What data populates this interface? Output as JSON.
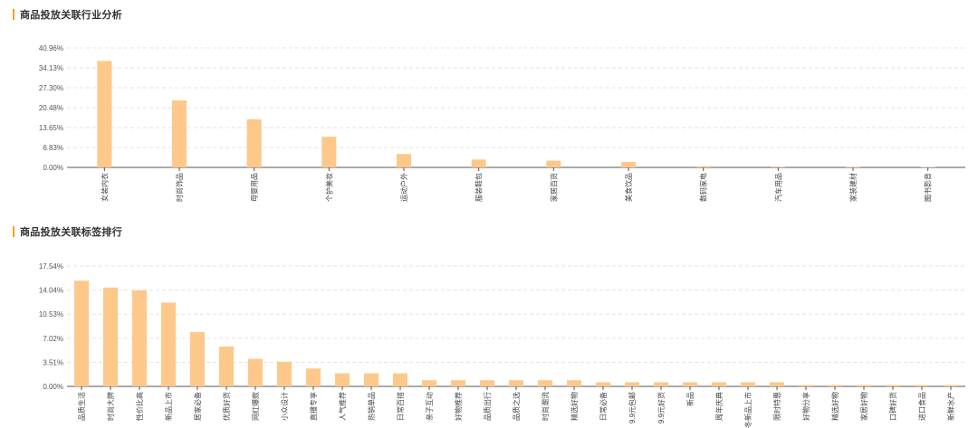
{
  "sections": [
    {
      "title": "商品投放关联行业分析"
    },
    {
      "title": "商品投放关联标签排行"
    }
  ],
  "colors": {
    "bar": "#fdc88a",
    "accent": "#f5a020",
    "grid": "#e3e3e3",
    "axis": "#555555"
  },
  "chart_data": [
    {
      "type": "bar",
      "title": "商品投放关联行业分析",
      "grid": true,
      "ylim": [
        0,
        40.96
      ],
      "yticks": [
        "0.00%",
        "6.83%",
        "13.65%",
        "20.48%",
        "27.30%",
        "34.13%",
        "40.96%"
      ],
      "categories": [
        "女装内衣",
        "时尚饰品",
        "母婴用品",
        "个护美妆",
        "运动户外",
        "服装鞋包",
        "家居百货",
        "美食饮品",
        "数码家电",
        "汽车用品",
        "家装建材",
        "图书影音"
      ],
      "values": [
        36.5,
        23.0,
        16.5,
        10.5,
        4.6,
        2.7,
        2.3,
        1.9,
        0.4,
        0.3,
        0.2,
        0.2
      ]
    },
    {
      "type": "bar",
      "title": "商品投放关联标签排行",
      "grid": true,
      "ylim": [
        0,
        17.54
      ],
      "yticks": [
        "0.00%",
        "3.51%",
        "7.02%",
        "10.53%",
        "14.04%",
        "17.54%"
      ],
      "categories": [
        "品质生活",
        "时尚大牌",
        "性价比高",
        "新品上市",
        "居家必备",
        "优质好货",
        "网红爆款",
        "小众设计",
        "直播专享",
        "人气推荐",
        "热销单品",
        "日常百搭",
        "亲子互动",
        "好物推荐",
        "品质出行",
        "品质之选",
        "时尚潮流",
        "精选好物",
        "日常必备",
        "9.9元包邮",
        "9.9元好货",
        "新品",
        "周年庆典",
        "秋冬新品上市",
        "限时特惠",
        "好物分享",
        "精选好物",
        "家居好物",
        "口碑好货",
        "进口食品",
        "新鲜水产"
      ],
      "values": [
        15.4,
        14.4,
        14.0,
        12.2,
        7.9,
        5.8,
        4.0,
        3.6,
        2.6,
        1.9,
        1.9,
        1.9,
        0.9,
        0.9,
        0.9,
        0.9,
        0.9,
        0.9,
        0.6,
        0.6,
        0.6,
        0.6,
        0.6,
        0.6,
        0.6,
        0.2,
        0.2,
        0.2,
        0.2,
        0.2,
        0.2
      ]
    }
  ]
}
